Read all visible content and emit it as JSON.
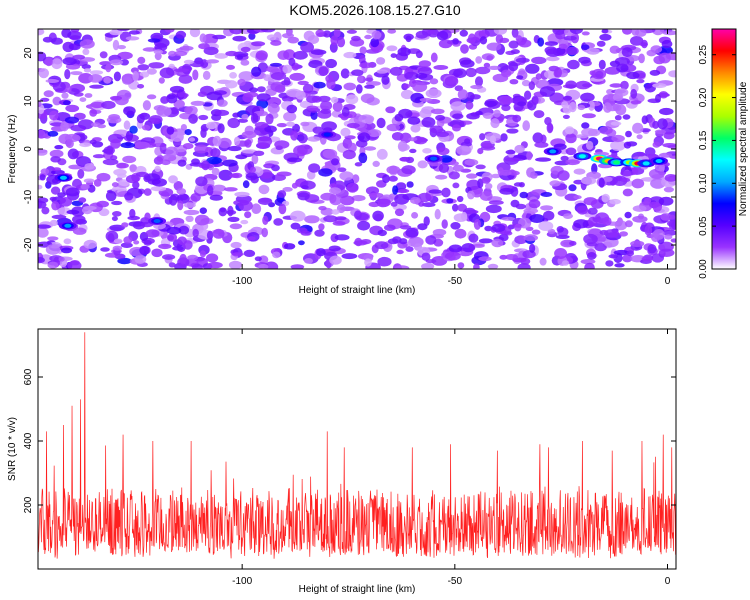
{
  "title": "KOM5.2026.108.15.27.G10",
  "colors": {
    "snr_line": "#ff2020",
    "heat_low": "#ffffff",
    "heat_scale": [
      "#ffffff",
      "#9933ff",
      "#5500ff",
      "#0000ff",
      "#00aaff",
      "#00ffff",
      "#00ff66",
      "#aaff00",
      "#ffff00",
      "#ff8800",
      "#ff0000",
      "#ff00aa"
    ]
  },
  "chart_data": [
    {
      "type": "heatmap",
      "xlabel": "Height of straight line (km)",
      "ylabel": "Frequency (Hz)",
      "xlim": [
        -148,
        2
      ],
      "ylim": [
        -25,
        25
      ],
      "xticks": [
        -100,
        -50,
        0
      ],
      "xtick_labels": [
        "-100",
        "-50",
        "0"
      ],
      "yticks": [
        -20,
        -10,
        0,
        10,
        20
      ],
      "ytick_labels": [
        "-20",
        "-10",
        "0",
        "10",
        "20"
      ],
      "colorbar": {
        "label": "Normalized spectral amplitude",
        "range": [
          0,
          0.28
        ],
        "ticks": [
          0,
          0.05,
          0.1,
          0.15,
          0.2,
          0.25
        ],
        "tick_labels": [
          "0.00",
          "0.05",
          "0.10",
          "0.15",
          "0.20",
          "0.25"
        ]
      },
      "background_level": 0.035,
      "hotspots": [
        {
          "x": -20,
          "y": -1.5,
          "value": 0.13
        },
        {
          "x": -16,
          "y": -2,
          "value": 0.27
        },
        {
          "x": -14,
          "y": -2.5,
          "value": 0.22
        },
        {
          "x": -12,
          "y": -2.8,
          "value": 0.15
        },
        {
          "x": -9,
          "y": -2.8,
          "value": 0.18
        },
        {
          "x": -7,
          "y": -3,
          "value": 0.26
        },
        {
          "x": -5,
          "y": -3,
          "value": 0.12
        },
        {
          "x": -2,
          "y": -2.5,
          "value": 0.11
        },
        {
          "x": -27,
          "y": -0.5,
          "value": 0.1
        },
        {
          "x": -142,
          "y": -6,
          "value": 0.11
        },
        {
          "x": -141,
          "y": -16,
          "value": 0.1
        },
        {
          "x": -120,
          "y": -15,
          "value": 0.09
        },
        {
          "x": -55,
          "y": -2,
          "value": 0.09
        },
        {
          "x": -80,
          "y": 3,
          "value": 0.08
        }
      ],
      "grid": false
    },
    {
      "type": "line",
      "xlabel": "Height of straight line (km)",
      "ylabel": "SNR (10 * v/v)",
      "xlim": [
        -148,
        2
      ],
      "ylim": [
        0,
        750
      ],
      "xticks": [
        -100,
        -50,
        0
      ],
      "xtick_labels": [
        "-100",
        "-50",
        "0"
      ],
      "yticks": [
        200,
        400,
        600
      ],
      "ytick_labels": [
        "200",
        "400",
        "600"
      ],
      "series": [
        {
          "typical_band": [
            60,
            260
          ],
          "peaks": [
            {
              "x": -137,
              "y": 740
            },
            {
              "x": -138,
              "y": 530
            },
            {
              "x": -140,
              "y": 510
            },
            {
              "x": -142,
              "y": 450
            },
            {
              "x": -146,
              "y": 430
            },
            {
              "x": -128,
              "y": 420
            },
            {
              "x": -121,
              "y": 400
            },
            {
              "x": -112,
              "y": 400
            },
            {
              "x": -80,
              "y": 430
            },
            {
              "x": -76,
              "y": 380
            },
            {
              "x": -60,
              "y": 380
            },
            {
              "x": -51,
              "y": 390
            },
            {
              "x": -40,
              "y": 370
            },
            {
              "x": -30,
              "y": 390
            },
            {
              "x": -28,
              "y": 380
            },
            {
              "x": -20,
              "y": 400
            },
            {
              "x": -13,
              "y": 370
            },
            {
              "x": -6,
              "y": 400
            },
            {
              "x": -1,
              "y": 420
            },
            {
              "x": 1,
              "y": 380
            }
          ]
        }
      ],
      "grid": false
    }
  ]
}
